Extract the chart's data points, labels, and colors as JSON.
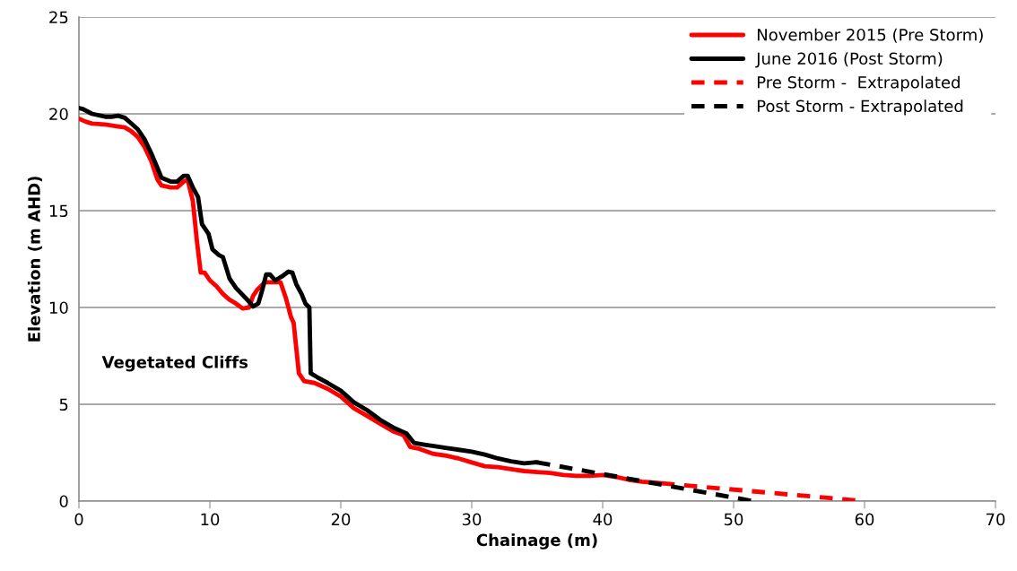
{
  "chart_data": {
    "type": "line",
    "xlabel": "Chainage (m)",
    "ylabel": "Elevation (m AHD)",
    "xlim": [
      0,
      70
    ],
    "xticks": [
      0,
      10,
      20,
      30,
      40,
      50,
      60,
      70
    ],
    "ylim": [
      0,
      25
    ],
    "yticks": [
      0,
      5,
      10,
      15,
      20,
      25
    ],
    "grid": "y",
    "legend": "top right",
    "annotations": [
      "Vegetated Cliffs"
    ],
    "series": [
      {
        "name": "November 2015 (Pre Storm)",
        "color": "#ff0000",
        "line_style": "solid",
        "x": [
          0,
          0.5,
          1,
          2,
          3,
          3.5,
          4,
          4.5,
          5,
          5.5,
          6,
          6.3,
          7,
          7.5,
          8,
          8.3,
          8.7,
          9,
          9.3,
          9.6,
          10,
          10.5,
          11,
          11.5,
          12,
          12.5,
          13,
          13.3,
          13.6,
          14.2,
          15,
          15.4,
          15.8,
          16.2,
          16.4,
          16.8,
          17.2,
          18,
          19,
          20,
          21,
          22,
          23,
          24,
          24.8,
          25.3,
          26,
          27,
          28,
          29,
          30,
          31,
          32,
          33,
          34,
          35,
          36,
          37,
          38,
          39,
          40,
          41,
          42,
          43,
          44,
          44.5
        ],
        "values": [
          19.75,
          19.6,
          19.5,
          19.45,
          19.35,
          19.3,
          19.1,
          18.8,
          18.3,
          17.6,
          16.6,
          16.3,
          16.2,
          16.2,
          16.5,
          16.6,
          15.5,
          13.5,
          11.8,
          11.8,
          11.4,
          11.1,
          10.7,
          10.4,
          10.2,
          9.95,
          10.0,
          10.6,
          10.9,
          11.3,
          11.3,
          11.3,
          10.5,
          9.5,
          9.2,
          6.6,
          6.2,
          6.1,
          5.8,
          5.4,
          4.8,
          4.4,
          4.0,
          3.6,
          3.4,
          2.8,
          2.7,
          2.45,
          2.35,
          2.2,
          2.0,
          1.8,
          1.75,
          1.65,
          1.55,
          1.5,
          1.45,
          1.35,
          1.3,
          1.3,
          1.35,
          1.25,
          1.1,
          1.0,
          0.95,
          0.92
        ]
      },
      {
        "name": "June 2016 (Post Storm)",
        "color": "#000000",
        "line_style": "solid",
        "x": [
          0,
          0.3,
          1,
          2,
          2.5,
          3,
          3.5,
          4,
          4.5,
          5,
          5.5,
          6,
          6.3,
          7,
          7.5,
          8,
          8.3,
          8.7,
          9.1,
          9.4,
          9.9,
          10.2,
          10.7,
          11,
          11.5,
          12,
          13,
          13.3,
          13.7,
          14,
          14.3,
          14.6,
          15,
          15.5,
          16,
          16.3,
          16.6,
          17,
          17.3,
          17.6,
          17.7,
          18.2,
          19,
          20,
          21,
          22,
          23,
          24,
          25,
          25.6,
          26.5,
          27,
          28,
          29,
          30,
          31,
          32,
          33,
          34,
          34.8,
          35
        ],
        "values": [
          20.3,
          20.25,
          20.0,
          19.85,
          19.85,
          19.9,
          19.8,
          19.5,
          19.2,
          18.7,
          18.0,
          17.2,
          16.7,
          16.5,
          16.5,
          16.8,
          16.8,
          16.2,
          15.7,
          14.3,
          13.8,
          13.0,
          12.7,
          12.6,
          11.5,
          11.0,
          10.3,
          10.05,
          10.2,
          10.9,
          11.7,
          11.7,
          11.4,
          11.6,
          11.85,
          11.8,
          11.2,
          10.7,
          10.2,
          10.0,
          6.6,
          6.4,
          6.1,
          5.7,
          5.1,
          4.7,
          4.2,
          3.8,
          3.5,
          3.0,
          2.9,
          2.85,
          2.75,
          2.65,
          2.55,
          2.4,
          2.2,
          2.05,
          1.95,
          2.0,
          2.0
        ]
      },
      {
        "name": "Pre Storm -  Extrapolated",
        "color": "#ff0000",
        "line_style": "dashed",
        "x": [
          44.5,
          60
        ],
        "values": [
          0.92,
          0
        ]
      },
      {
        "name": "Post Storm - Extrapolated",
        "color": "#000000",
        "line_style": "dashed",
        "x": [
          35,
          51.5
        ],
        "values": [
          2.0,
          0
        ]
      }
    ]
  }
}
